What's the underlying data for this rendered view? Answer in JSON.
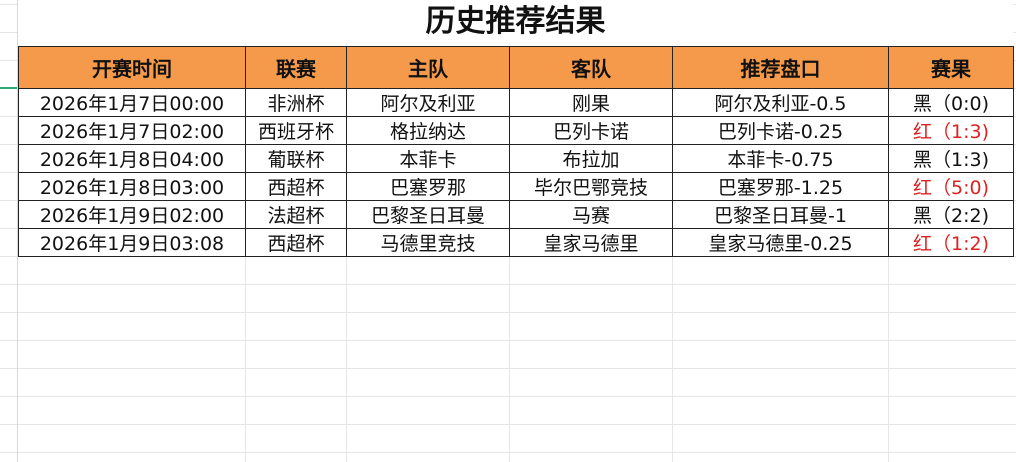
{
  "title": "历史推荐结果",
  "columns": [
    "开赛时间",
    "联赛",
    "主队",
    "客队",
    "推荐盘口",
    "赛果"
  ],
  "rows": [
    {
      "time": "2026年1月7日00:00",
      "league": "非洲杯",
      "home": "阿尔及利亚",
      "away": "刚果",
      "pick": "阿尔及利亚-0.5",
      "result": "黑（0:0)",
      "status": "黑"
    },
    {
      "time": "2026年1月7日02:00",
      "league": "西班牙杯",
      "home": "格拉纳达",
      "away": "巴列卡诺",
      "pick": "巴列卡诺-0.25",
      "result": "红（1:3)",
      "status": "红"
    },
    {
      "time": "2026年1月8日04:00",
      "league": "葡联杯",
      "home": "本菲卡",
      "away": "布拉加",
      "pick": "本菲卡-0.75",
      "result": "黑（1:3)",
      "status": "黑"
    },
    {
      "time": "2026年1月8日03:00",
      "league": "西超杯",
      "home": "巴塞罗那",
      "away": "毕尔巴鄂竞技",
      "pick": "巴塞罗那-1.25",
      "result": "红（5:0)",
      "status": "红"
    },
    {
      "time": "2026年1月9日02:00",
      "league": "法超杯",
      "home": "巴黎圣日耳曼",
      "away": "马赛",
      "pick": "巴黎圣日耳曼-1",
      "result": "黑（2:2)",
      "status": "黑"
    },
    {
      "time": "2026年1月9日03:08",
      "league": "西超杯",
      "home": "马德里竞技",
      "away": "皇家马德里",
      "pick": "皇家马德里-0.25",
      "result": "红（1:2)",
      "status": "红"
    }
  ],
  "colors": {
    "header_bg": "#f59a4a",
    "win": "#dd2222",
    "loss": "#111111"
  }
}
